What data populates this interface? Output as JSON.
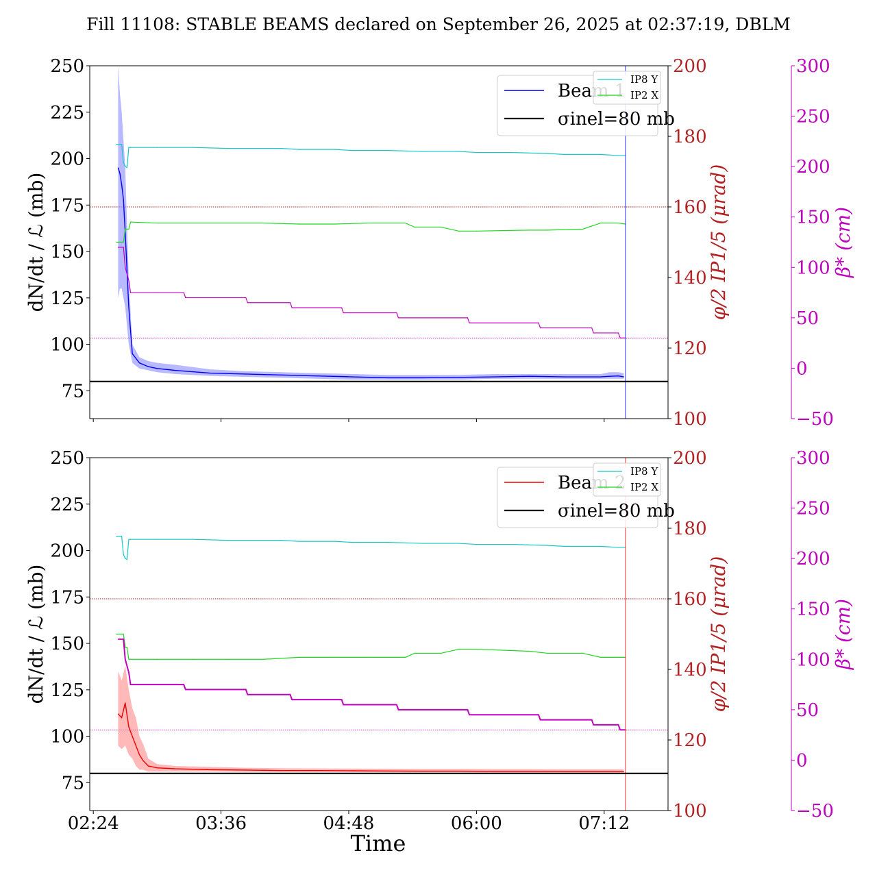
{
  "figure": {
    "title": "Fill 11108: STABLE BEAMS declared on September 26, 2025 at 02:37:19, DBLM",
    "xlabel": "Time"
  },
  "colors": {
    "ip8y": "#17c7c7",
    "ip2x": "#1ed81e",
    "beta": "#bf00bf",
    "phi": "#b22222",
    "beam1": "#0000ee",
    "beam1_band": "#8080ff",
    "beam2": "#ee0000",
    "beam2_band": "#ff8080",
    "sigma": "#000000"
  },
  "chart_data": [
    {
      "type": "line",
      "panel": "top",
      "ylabel_left": "dN/dt / ℒ (mb)",
      "ylabel_right1": "φ/2 IP1/5 (μrad)",
      "ylabel_right2": "β* (cm)",
      "ylim_left": [
        60,
        250
      ],
      "yticks_left": [
        75,
        100,
        125,
        150,
        175,
        200,
        225,
        250
      ],
      "ylim_right1": [
        100,
        200
      ],
      "yticks_right1": [
        100,
        120,
        140,
        160,
        180,
        200
      ],
      "ylim_right2": [
        -50,
        300
      ],
      "yticks_right2": [
        -50,
        0,
        50,
        100,
        150,
        200,
        250,
        300
      ],
      "xlim": [
        "02:22",
        "07:48"
      ],
      "xticks": [
        "02:24",
        "03:36",
        "04:48",
        "06:00",
        "07:12"
      ],
      "legend": {
        "position": "top-right",
        "entries": [
          "Beam 1",
          "σinel=80 mb"
        ]
      },
      "legend_small": {
        "position": "top-right",
        "entries": [
          "IP8 Y",
          "IP2 X"
        ]
      },
      "hlines": [
        {
          "name": "σinel=80 mb",
          "value": 80,
          "axis": "left"
        }
      ],
      "ref_lines": [
        {
          "axis": "right1",
          "value": 160
        },
        {
          "axis": "right2",
          "value": 30
        }
      ],
      "series": [
        {
          "name": "Beam 1",
          "axis": "left",
          "x": [
            "02:38",
            "02:39",
            "02:40",
            "02:41",
            "02:42",
            "02:44",
            "02:46",
            "02:50",
            "02:55",
            "03:00",
            "03:10",
            "03:30",
            "03:50",
            "04:10",
            "04:30",
            "04:50",
            "05:10",
            "05:30",
            "05:50",
            "06:10",
            "06:30",
            "06:50",
            "07:10",
            "07:15",
            "07:20",
            "07:23"
          ],
          "y": [
            195,
            192,
            186,
            178,
            160,
            120,
            95,
            90,
            88,
            87,
            86,
            84.5,
            84,
            83.5,
            83,
            82.5,
            82,
            82,
            82.2,
            82.5,
            82.8,
            82.5,
            82.5,
            82.8,
            83,
            82.5
          ],
          "band": [
            [
              125,
              250
            ],
            [
              130,
              235
            ],
            [
              130,
              225
            ],
            [
              125,
              210
            ],
            [
              120,
              195
            ],
            [
              100,
              135
            ],
            [
              90,
              100
            ],
            [
              87,
              93
            ],
            [
              86,
              91
            ],
            [
              85,
              90
            ],
            [
              84,
              89
            ],
            [
              83,
              86.5
            ],
            [
              82.5,
              85.5
            ],
            [
              82,
              85
            ],
            [
              81.5,
              84.5
            ],
            [
              81,
              84
            ],
            [
              81,
              83.5
            ],
            [
              81,
              83.5
            ],
            [
              81,
              83.5
            ],
            [
              81.5,
              84
            ],
            [
              81.5,
              84
            ],
            [
              81.5,
              84
            ],
            [
              81.5,
              84
            ],
            [
              81.5,
              85
            ],
            [
              81.5,
              85
            ],
            [
              81.5,
              84.5
            ]
          ]
        },
        {
          "name": "IP8 Y",
          "axis": "right2",
          "x": [
            "02:37",
            "02:40",
            "02:41",
            "02:42",
            "02:43",
            "02:44",
            "02:45",
            "03:00",
            "03:20",
            "03:40",
            "03:45",
            "04:10",
            "04:20",
            "04:40",
            "04:50",
            "05:10",
            "05:30",
            "05:50",
            "06:00",
            "06:20",
            "06:40",
            "06:50",
            "07:10",
            "07:20",
            "07:24"
          ],
          "y": [
            222,
            222,
            204,
            200,
            199,
            219,
            219,
            219,
            219,
            218,
            218,
            218,
            217,
            217,
            216,
            216,
            215,
            215,
            214,
            214,
            213,
            212,
            212,
            211,
            211
          ]
        },
        {
          "name": "IP2 X",
          "axis": "right2",
          "x": [
            "02:37",
            "02:40",
            "02:41",
            "02:42",
            "02:43",
            "02:44",
            "02:45",
            "03:00",
            "03:20",
            "03:40",
            "04:00",
            "04:20",
            "04:40",
            "05:00",
            "05:20",
            "05:25",
            "05:40",
            "05:50",
            "06:00",
            "06:30",
            "06:40",
            "07:00",
            "07:10",
            "07:20",
            "07:24"
          ],
          "y": [
            125,
            125,
            125,
            138,
            138,
            138,
            145,
            144,
            144,
            144,
            144,
            143,
            143,
            144,
            144,
            140,
            140,
            136,
            136,
            137,
            137,
            138,
            144,
            144,
            143
          ]
        },
        {
          "name": "β*",
          "axis": "right2",
          "x": [
            "02:38",
            "02:41",
            "02:42",
            "02:44",
            "02:45",
            "03:00",
            "03:15",
            "03:16",
            "03:50",
            "03:51",
            "04:15",
            "04:16",
            "04:44",
            "04:45",
            "05:15",
            "05:16",
            "05:55",
            "05:56",
            "06:35",
            "06:36",
            "07:05",
            "07:06",
            "07:20",
            "07:21",
            "07:24"
          ],
          "y": [
            120,
            120,
            100,
            87,
            75,
            75,
            75,
            70,
            70,
            65,
            65,
            60,
            60,
            55,
            55,
            50,
            50,
            45,
            45,
            40,
            40,
            35,
            35,
            30,
            30
          ]
        }
      ]
    },
    {
      "type": "line",
      "panel": "bottom",
      "ylabel_left": "dN/dt / ℒ (mb)",
      "ylabel_right1": "φ/2 IP1/5 (μrad)",
      "ylabel_right2": "β* (cm)",
      "ylim_left": [
        60,
        250
      ],
      "yticks_left": [
        75,
        100,
        125,
        150,
        175,
        200,
        225,
        250
      ],
      "ylim_right1": [
        100,
        200
      ],
      "yticks_right1": [
        100,
        120,
        140,
        160,
        180,
        200
      ],
      "ylim_right2": [
        -50,
        300
      ],
      "yticks_right2": [
        -50,
        0,
        50,
        100,
        150,
        200,
        250,
        300
      ],
      "xlim": [
        "02:22",
        "07:48"
      ],
      "xticks": [
        "02:24",
        "03:36",
        "04:48",
        "06:00",
        "07:12"
      ],
      "legend": {
        "position": "top-right",
        "entries": [
          "Beam 2",
          "σinel=80 mb"
        ]
      },
      "legend_small": {
        "position": "top-right",
        "entries": [
          "IP8 Y",
          "IP2 X"
        ]
      },
      "hlines": [
        {
          "name": "σinel=80 mb",
          "value": 80,
          "axis": "left"
        }
      ],
      "ref_lines": [
        {
          "axis": "right1",
          "value": 160
        },
        {
          "axis": "right2",
          "value": 30
        }
      ],
      "series": [
        {
          "name": "Beam 2",
          "axis": "left",
          "x": [
            "02:38",
            "02:40",
            "02:42",
            "02:44",
            "02:46",
            "02:48",
            "02:50",
            "02:52",
            "02:55",
            "03:00",
            "03:10",
            "03:30",
            "03:50",
            "04:10",
            "04:30",
            "04:50",
            "05:10",
            "05:30",
            "05:50",
            "06:10",
            "06:30",
            "06:50",
            "07:10",
            "07:20",
            "07:23"
          ],
          "y": [
            112,
            110,
            118,
            105,
            100,
            95,
            90,
            87,
            84,
            83,
            82.5,
            82,
            81.8,
            81.5,
            81.5,
            81.4,
            81.3,
            81.2,
            81.2,
            81.1,
            81.1,
            81,
            81,
            81,
            81
          ],
          "band": [
            [
              95,
              135
            ],
            [
              93,
              130
            ],
            [
              95,
              138
            ],
            [
              90,
              125
            ],
            [
              88,
              115
            ],
            [
              84,
              110
            ],
            [
              82,
              100
            ],
            [
              82,
              96
            ],
            [
              81,
              88
            ],
            [
              81,
              85
            ],
            [
              81,
              84
            ],
            [
              81,
              83.5
            ],
            [
              80.8,
              83
            ],
            [
              80.8,
              82.8
            ],
            [
              80.8,
              82.7
            ],
            [
              80.7,
              82.6
            ],
            [
              80.6,
              82.5
            ],
            [
              80.6,
              82.4
            ],
            [
              80.6,
              82.4
            ],
            [
              80.5,
              82.3
            ],
            [
              80.5,
              82.3
            ],
            [
              80.5,
              82.2
            ],
            [
              80.5,
              82.2
            ],
            [
              80.5,
              82.2
            ],
            [
              80.5,
              82.2
            ]
          ]
        },
        {
          "name": "IP8 Y",
          "axis": "right2",
          "x": [
            "02:37",
            "02:40",
            "02:41",
            "02:42",
            "02:43",
            "02:44",
            "02:45",
            "03:00",
            "03:20",
            "03:40",
            "03:45",
            "04:10",
            "04:20",
            "04:40",
            "04:50",
            "05:10",
            "05:30",
            "05:50",
            "06:00",
            "06:20",
            "06:40",
            "06:50",
            "07:10",
            "07:20",
            "07:24"
          ],
          "y": [
            222,
            222,
            204,
            200,
            199,
            219,
            219,
            219,
            219,
            218,
            218,
            218,
            217,
            217,
            216,
            216,
            215,
            215,
            214,
            214,
            213,
            212,
            212,
            211,
            211
          ]
        },
        {
          "name": "IP2 X",
          "axis": "right2",
          "x": [
            "02:37",
            "02:40",
            "02:41",
            "02:42",
            "02:43",
            "02:44",
            "02:45",
            "03:00",
            "03:20",
            "03:40",
            "04:00",
            "04:20",
            "04:40",
            "05:00",
            "05:20",
            "05:25",
            "05:40",
            "05:50",
            "06:00",
            "06:30",
            "06:40",
            "07:00",
            "07:10",
            "07:20",
            "07:24"
          ],
          "y": [
            125,
            125,
            125,
            112,
            112,
            100,
            100,
            100,
            100,
            100,
            100,
            102,
            102,
            102,
            102,
            106,
            106,
            110,
            110,
            108,
            106,
            106,
            102,
            102,
            102
          ]
        },
        {
          "name": "β*",
          "axis": "right2",
          "x": [
            "02:38",
            "02:41",
            "02:42",
            "02:44",
            "02:45",
            "03:00",
            "03:15",
            "03:16",
            "03:50",
            "03:51",
            "04:15",
            "04:16",
            "04:44",
            "04:45",
            "05:15",
            "05:16",
            "05:55",
            "05:56",
            "06:35",
            "06:36",
            "07:05",
            "07:06",
            "07:20",
            "07:21",
            "07:24"
          ],
          "y": [
            120,
            120,
            100,
            87,
            75,
            75,
            75,
            70,
            70,
            65,
            65,
            60,
            60,
            55,
            55,
            50,
            50,
            45,
            45,
            40,
            40,
            35,
            35,
            30,
            30
          ]
        }
      ]
    }
  ]
}
